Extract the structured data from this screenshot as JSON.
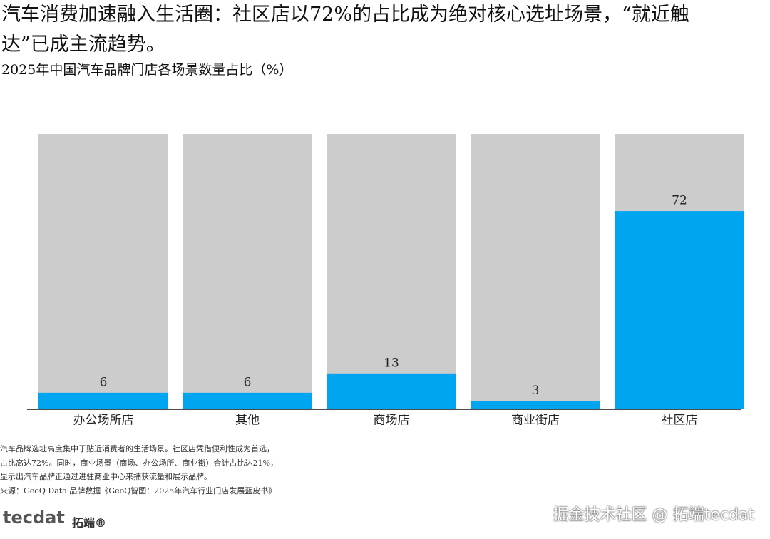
{
  "chart_data": {
    "type": "bar",
    "title": "汽车消费加速融入生活圈：社区店以72%的占比成为绝对核心选址场景，“就近触达”已成主流趋势。",
    "subtitle": "2025年中国汽车品牌门店各场景数量占比（%）",
    "categories": [
      "办公场所店",
      "其他",
      "商场店",
      "商业街店",
      "社区店"
    ],
    "values": [
      6,
      6,
      13,
      3,
      72
    ],
    "color": "#00a5ef",
    "ylim": [
      0,
      100
    ],
    "notes": [
      "汽车品牌选址高度集中于贴近消费者的生活场景。社区店凭借便利性成为首选，",
      "占比高达72%。同时，商业场景（商场、办公场所、商业街）合计占比达21%，",
      "显示出汽车品牌正通过进驻商业中心来捕获流量和展示品牌。"
    ],
    "source": "来源：GeoQ Data 品牌数据《GeoQ智图：2025年汽车行业门店发展蓝皮书》"
  },
  "footer": {
    "logo": "tecdat",
    "brand": "拓端®",
    "watermark": "掘金技术社区 @ 拓端tecdat"
  }
}
